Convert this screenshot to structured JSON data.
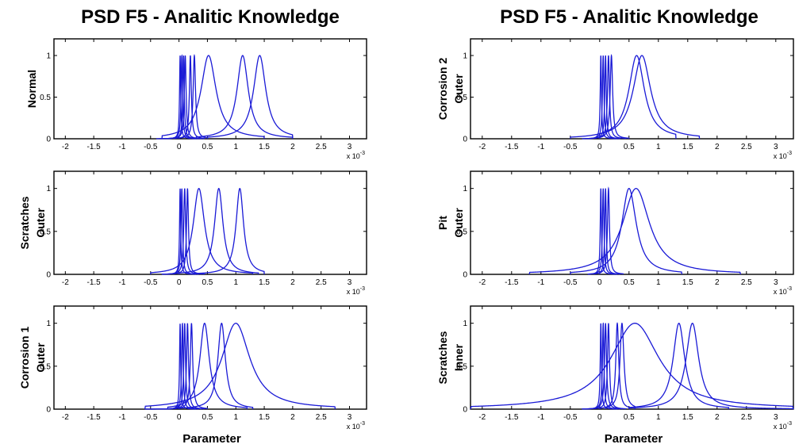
{
  "colors": {
    "curve": "#1a1ad6",
    "axes": "#000000",
    "background": "#ffffff"
  },
  "columns": [
    {
      "title": "PSD F5 - Analitic Knowledge",
      "xlabel": "Parameter"
    },
    {
      "title": "PSD F5 - Analitic Knowledge",
      "xlabel": "Parameter"
    }
  ],
  "axes_common": {
    "xticks": [
      -2,
      -1.5,
      -1,
      -0.5,
      0,
      0.5,
      1,
      1.5,
      2,
      2.5,
      3
    ],
    "xtick_labels": [
      "-2",
      "-1.5",
      "-1",
      "-0.5",
      "0",
      "0.5",
      "1",
      "1.5",
      "2",
      "2.5",
      "3"
    ],
    "yticks": [
      0,
      0.5,
      1
    ],
    "ytick_labels": [
      "0",
      "0.5",
      "1"
    ],
    "xlim": [
      -2.2,
      3.3
    ],
    "ylim": [
      0,
      1.2
    ],
    "exponent_base": "x 10",
    "exponent_power": "-3"
  },
  "chart_data": [
    {
      "type": "line",
      "column": 0,
      "row": 0,
      "ylabel_lines": [
        "Normal"
      ],
      "series": [
        {
          "center": 0.02,
          "width": 0.012,
          "support": [
            -0.4,
            0.3
          ]
        },
        {
          "center": 0.05,
          "width": 0.015,
          "support": [
            -0.35,
            0.35
          ]
        },
        {
          "center": 0.08,
          "width": 0.015,
          "support": [
            -0.3,
            0.4
          ]
        },
        {
          "center": 0.11,
          "width": 0.018,
          "support": [
            -0.25,
            0.45
          ]
        },
        {
          "center": 0.2,
          "width": 0.02,
          "support": [
            -0.1,
            0.45
          ]
        },
        {
          "center": 0.27,
          "width": 0.025,
          "support": [
            0.0,
            0.5
          ]
        },
        {
          "center": 0.52,
          "width": 0.16,
          "support": [
            -0.3,
            1.5
          ]
        },
        {
          "center": 1.12,
          "width": 0.12,
          "support": [
            0.3,
            2.0
          ]
        },
        {
          "center": 1.42,
          "width": 0.13,
          "support": [
            0.5,
            2.0
          ]
        }
      ]
    },
    {
      "type": "line",
      "column": 0,
      "row": 1,
      "ylabel_lines": [
        "Scratches",
        "Outer"
      ],
      "series": [
        {
          "center": 0.02,
          "width": 0.012,
          "support": [
            -0.3,
            0.3
          ]
        },
        {
          "center": 0.05,
          "width": 0.015,
          "support": [
            -0.3,
            0.35
          ]
        },
        {
          "center": 0.1,
          "width": 0.02,
          "support": [
            -0.2,
            0.4
          ]
        },
        {
          "center": 0.15,
          "width": 0.02,
          "support": [
            -0.1,
            0.45
          ]
        },
        {
          "center": 0.35,
          "width": 0.12,
          "support": [
            -0.5,
            1.3
          ]
        },
        {
          "center": 0.7,
          "width": 0.09,
          "support": [
            0.0,
            1.4
          ]
        },
        {
          "center": 1.07,
          "width": 0.08,
          "support": [
            0.3,
            1.5
          ]
        }
      ]
    },
    {
      "type": "line",
      "column": 0,
      "row": 2,
      "ylabel_lines": [
        "Corrosion 1",
        "Outer"
      ],
      "series": [
        {
          "center": 0.02,
          "width": 0.012,
          "support": [
            -0.6,
            0.3
          ]
        },
        {
          "center": 0.06,
          "width": 0.015,
          "support": [
            -0.5,
            0.35
          ]
        },
        {
          "center": 0.1,
          "width": 0.018,
          "support": [
            -0.4,
            0.4
          ]
        },
        {
          "center": 0.15,
          "width": 0.02,
          "support": [
            -0.3,
            0.45
          ]
        },
        {
          "center": 0.22,
          "width": 0.025,
          "support": [
            -0.2,
            0.5
          ]
        },
        {
          "center": 0.45,
          "width": 0.1,
          "support": [
            -0.2,
            1.2
          ]
        },
        {
          "center": 0.75,
          "width": 0.08,
          "support": [
            0.0,
            1.3
          ]
        },
        {
          "center": 1.0,
          "width": 0.3,
          "support": [
            -0.6,
            2.75
          ]
        }
      ]
    },
    {
      "type": "line",
      "column": 1,
      "row": 0,
      "ylabel_lines": [
        "Corrosion 2",
        "Outer"
      ],
      "series": [
        {
          "center": 0.02,
          "width": 0.012,
          "support": [
            -0.3,
            0.3
          ]
        },
        {
          "center": 0.06,
          "width": 0.015,
          "support": [
            -0.25,
            0.35
          ]
        },
        {
          "center": 0.1,
          "width": 0.015,
          "support": [
            -0.2,
            0.35
          ]
        },
        {
          "center": 0.15,
          "width": 0.02,
          "support": [
            -0.1,
            0.45
          ]
        },
        {
          "center": 0.2,
          "width": 0.025,
          "support": [
            0.0,
            0.5
          ]
        },
        {
          "center": 0.63,
          "width": 0.16,
          "support": [
            -0.5,
            1.3
          ]
        },
        {
          "center": 0.72,
          "width": 0.18,
          "support": [
            0.0,
            1.7
          ]
        }
      ]
    },
    {
      "type": "line",
      "column": 1,
      "row": 1,
      "ylabel_lines": [
        "Pit",
        "Outer"
      ],
      "series": [
        {
          "center": 0.02,
          "width": 0.012,
          "support": [
            -0.2,
            0.3
          ]
        },
        {
          "center": 0.06,
          "width": 0.015,
          "support": [
            -0.2,
            0.3
          ]
        },
        {
          "center": 0.1,
          "width": 0.015,
          "support": [
            -0.1,
            0.35
          ]
        },
        {
          "center": 0.15,
          "width": 0.02,
          "support": [
            0.0,
            0.4
          ]
        },
        {
          "center": 0.5,
          "width": 0.15,
          "support": [
            -0.5,
            1.4
          ]
        },
        {
          "center": 0.62,
          "width": 0.28,
          "support": [
            -1.2,
            2.4
          ]
        }
      ]
    },
    {
      "type": "line",
      "column": 1,
      "row": 2,
      "ylabel_lines": [
        "Scratches",
        "Inner"
      ],
      "series": [
        {
          "center": 0.02,
          "width": 0.012,
          "support": [
            -0.3,
            0.3
          ]
        },
        {
          "center": 0.06,
          "width": 0.015,
          "support": [
            -0.3,
            0.35
          ]
        },
        {
          "center": 0.1,
          "width": 0.02,
          "support": [
            -0.2,
            0.4
          ]
        },
        {
          "center": 0.15,
          "width": 0.02,
          "support": [
            -0.1,
            0.45
          ]
        },
        {
          "center": 0.3,
          "width": 0.03,
          "support": [
            0.0,
            0.5
          ]
        },
        {
          "center": 0.38,
          "width": 0.04,
          "support": [
            0.1,
            0.6
          ]
        },
        {
          "center": 0.6,
          "width": 0.5,
          "support": [
            -2.2,
            3.3
          ]
        },
        {
          "center": 1.35,
          "width": 0.12,
          "support": [
            0.5,
            2.2
          ]
        },
        {
          "center": 1.58,
          "width": 0.13,
          "support": [
            0.5,
            3.3
          ]
        }
      ]
    }
  ]
}
